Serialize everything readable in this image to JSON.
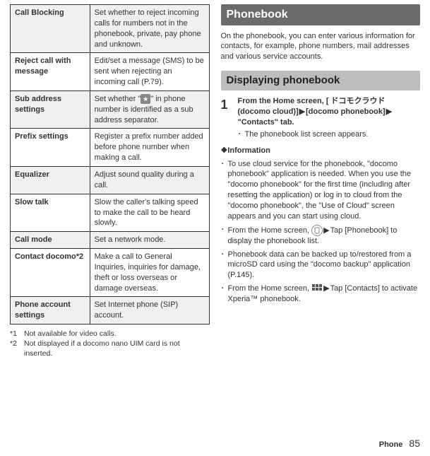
{
  "table": {
    "rows": [
      {
        "label": "Call Blocking",
        "desc": "Set whether to reject incoming calls for numbers not in the phonebook, private, pay phone and unknown.",
        "shaded": true
      },
      {
        "label": "Reject call with message",
        "desc": "Edit/set a message (SMS) to be sent when rejecting an incoming call (P.79).",
        "shaded": false
      },
      {
        "label": "Sub address settings",
        "desc_pre": "Set whether \"",
        "desc_post": "\" in phone number is identified as a sub address separator.",
        "shaded": true,
        "icon": "star"
      },
      {
        "label": "Prefix settings",
        "desc": "Register a prefix number added before phone number when making a call.",
        "shaded": false
      },
      {
        "label": "Equalizer",
        "desc": "Adjust sound quality during a call.",
        "shaded": true
      },
      {
        "label": "Slow talk",
        "desc": "Slow the caller's talking speed to make the call to be heard slowly.",
        "shaded": false
      },
      {
        "label": "Call mode",
        "desc": "Set a network mode.",
        "shaded": true
      },
      {
        "label": "Contact docomo*2",
        "desc": "Make a call to General Inquiries, inquiries for damage, theft or loss overseas or damage overseas.",
        "shaded": false
      },
      {
        "label": "Phone account settings",
        "desc": "Set Internet phone (SIP) account.",
        "shaded": true
      }
    ]
  },
  "footnotes": [
    {
      "mark": "*1",
      "text": "Not available for video calls."
    },
    {
      "mark": "*2",
      "text": "Not displayed if a docomo nano UIM card is not inserted."
    }
  ],
  "section_title": "Phonebook",
  "intro": "On the phonebook, you can enter various information for contacts, for example, phone numbers, mail addresses and various service accounts.",
  "subsection_title": "Displaying phonebook",
  "step": {
    "num": "1",
    "main_pre": "From the Home screen, [ ドコモクラウド (docomo cloud)]",
    "main_mid": "[docomo phonebook]",
    "main_post": "\"Contacts\" tab.",
    "sub": "The phonebook list screen appears."
  },
  "info_title": "❖Information",
  "info_items": [
    {
      "text": "To use cloud service for the phonebook, \"docomo phonebook\" application is needed. When you use the \"docomo phonebook\" for the first time (including after resetting the application) or log in to cloud from the \"docomo phonebook\", the \"Use of Cloud\" screen appears and you can start using cloud."
    },
    {
      "pre": "From the Home screen, ",
      "icon": "circle",
      "post": "Tap [Phonebook] to display the phonebook list.",
      "tri": true
    },
    {
      "text": "Phonebook data can be backed up to/restored from a microSD card using the \"docomo backup\" application (P.145)."
    },
    {
      "pre": "From the Home screen, ",
      "icon": "home",
      "post": "Tap [Contacts] to activate Xperia™ phonebook.",
      "tri": true
    }
  ],
  "footer": {
    "label": "Phone",
    "num": "85"
  },
  "tri": "▶"
}
